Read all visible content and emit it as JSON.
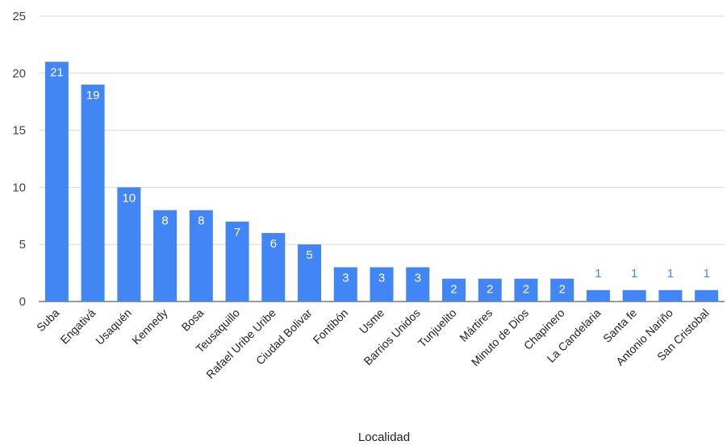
{
  "chart_data": {
    "type": "bar",
    "categories": [
      "Suba",
      "Engativá",
      "Usaquén",
      "Kennedy",
      "Bosa",
      "Teusaquillo",
      "Rafael Uribe Uribe",
      "Ciudad Bolivar",
      "Fontibón",
      "Usme",
      "Barrios Unidos",
      "Tunjuelito",
      "Mártires",
      "Minuto de Dios",
      "Chapinero",
      "La Candelaria",
      "Santa fe",
      "Antonio Nariño",
      "San Cristobal"
    ],
    "values": [
      21,
      19,
      10,
      8,
      8,
      7,
      6,
      5,
      3,
      3,
      3,
      2,
      2,
      2,
      2,
      1,
      1,
      1,
      1
    ],
    "data_labels": [
      "21",
      "19",
      "10",
      "8",
      "8",
      "7",
      "6",
      "5",
      "3",
      "3",
      "3",
      "2",
      "2",
      "2",
      "2",
      "1",
      "1",
      "1",
      "1"
    ],
    "title": "",
    "xlabel": "Localidad",
    "ylabel": "",
    "ylim": [
      0,
      25
    ],
    "y_ticks": [
      "0",
      "5",
      "10",
      "15",
      "20",
      "25"
    ],
    "grid": true,
    "legend": "none",
    "colors": {
      "bar": "#4285f4",
      "grid": "#d9d9d9",
      "inside_label": "#ffffff",
      "outside_label": "#4285f4"
    }
  }
}
